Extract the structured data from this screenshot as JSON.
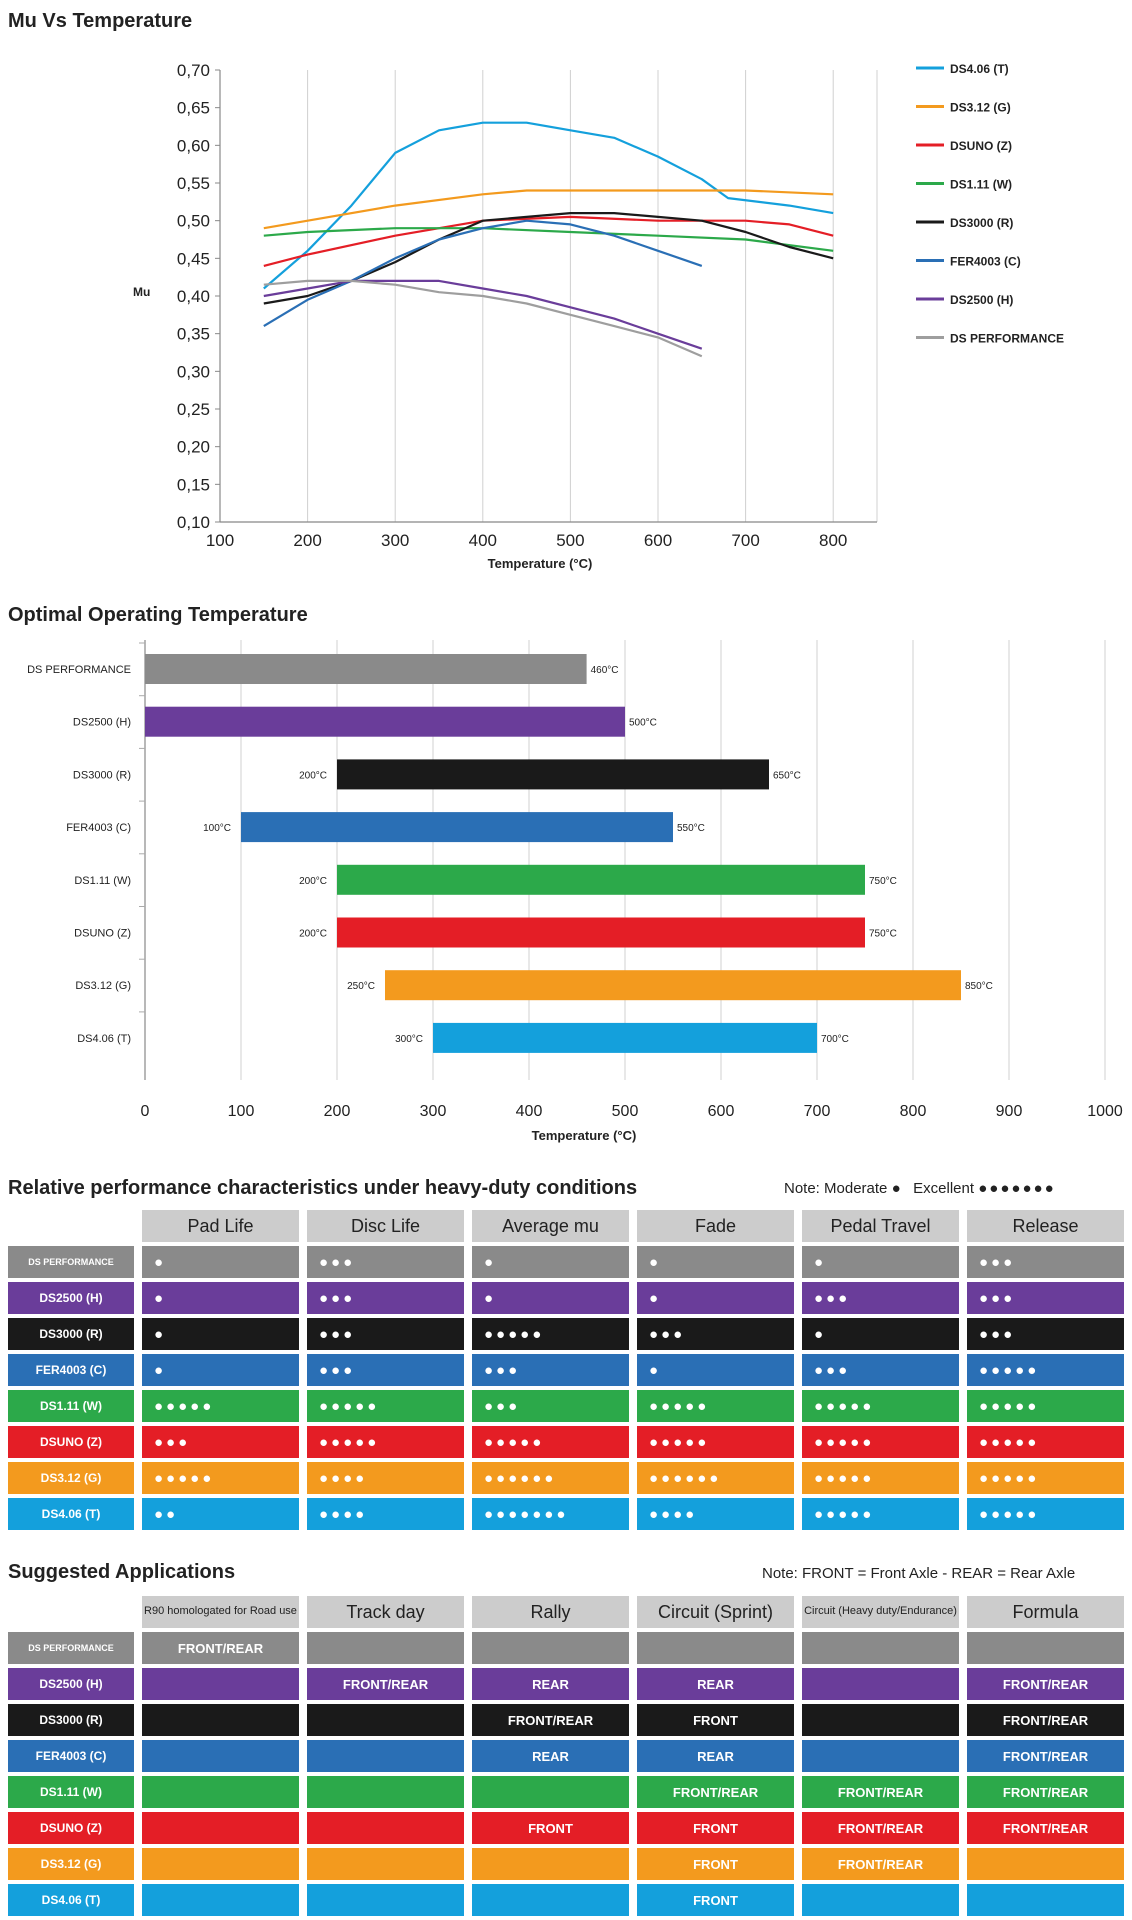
{
  "mu_chart": {
    "title": "Mu Vs Temperature",
    "xlabel": "Temperature (°C)",
    "ylabel": "Mu",
    "yticks": [
      "0,70",
      "0,65",
      "0,60",
      "0,55",
      "0,50",
      "0,45",
      "0,40",
      "0,35",
      "0,30",
      "0,25",
      "0,20",
      "0,15",
      "0,10"
    ],
    "xticks": [
      "100",
      "200",
      "300",
      "400",
      "500",
      "600",
      "700",
      "800"
    ]
  },
  "temp_chart": {
    "title": "Optimal Operating Temperature",
    "xlabel": "Temperature (°C)",
    "xticks": [
      "0",
      "100",
      "200",
      "300",
      "400",
      "500",
      "600",
      "700",
      "800",
      "900",
      "1000"
    ]
  },
  "perf": {
    "title": "Relative performance characteristics under heavy-duty conditions",
    "note_label": "Note:",
    "note_moderate": "Moderate",
    "note_moderate_dots": "●",
    "note_excellent": "Excellent",
    "note_excellent_dots": "●●●●●●●",
    "headers": [
      "Pad Life",
      "Disc Life",
      "Average mu",
      "Fade",
      "Pedal Travel",
      "Release"
    ],
    "rows": [
      {
        "label": "DS PERFORMANCE",
        "color": "#8a8a8a",
        "cells": [
          "●",
          "●●●",
          "●",
          "●",
          "●",
          "●●●"
        ]
      },
      {
        "label": "DS2500 (H)",
        "color": "#6a3d9a",
        "cells": [
          "●",
          "●●●",
          "●",
          "●",
          "●●●",
          "●●●"
        ]
      },
      {
        "label": "DS3000 (R)",
        "color": "#1a1a1a",
        "cells": [
          "●",
          "●●●",
          "●●●●●",
          "●●●",
          "●",
          "●●●"
        ]
      },
      {
        "label": "FER4003 (C)",
        "color": "#2a6fb5",
        "cells": [
          "●",
          "●●●",
          "●●●",
          "●",
          "●●●",
          "●●●●●"
        ]
      },
      {
        "label": "DS1.11 (W)",
        "color": "#2ca94a",
        "cells": [
          "●●●●●",
          "●●●●●",
          "●●●",
          "●●●●●",
          "●●●●●",
          "●●●●●"
        ]
      },
      {
        "label": "DSUNO (Z)",
        "color": "#e41e26",
        "cells": [
          "●●●",
          "●●●●●",
          "●●●●●",
          "●●●●●",
          "●●●●●",
          "●●●●●"
        ]
      },
      {
        "label": "DS3.12 (G)",
        "color": "#f39a1e",
        "cells": [
          "●●●●●",
          "●●●●",
          "●●●●●●",
          "●●●●●●",
          "●●●●●",
          "●●●●●"
        ]
      },
      {
        "label": "DS4.06 (T)",
        "color": "#14a0dc",
        "cells": [
          "●●",
          "●●●●",
          "●●●●●●●",
          "●●●●",
          "●●●●●",
          "●●●●●"
        ]
      }
    ]
  },
  "apps": {
    "title": "Suggested Applications",
    "note": "Note: FRONT = Front Axle - REAR = Rear Axle",
    "headers": [
      "R90 homologated for Road use",
      "Track day",
      "Rally",
      "Circuit (Sprint)",
      "Circuit (Heavy duty/Endurance)",
      "Formula"
    ],
    "rows": [
      {
        "label": "DS PERFORMANCE",
        "color": "#8a8a8a",
        "cells": [
          "FRONT/REAR",
          "",
          "",
          "",
          "",
          ""
        ]
      },
      {
        "label": "DS2500 (H)",
        "color": "#6a3d9a",
        "cells": [
          "",
          "FRONT/REAR",
          "REAR",
          "REAR",
          "",
          "FRONT/REAR"
        ]
      },
      {
        "label": "DS3000 (R)",
        "color": "#1a1a1a",
        "cells": [
          "",
          "",
          "FRONT/REAR",
          "FRONT",
          "",
          "FRONT/REAR"
        ]
      },
      {
        "label": "FER4003 (C)",
        "color": "#2a6fb5",
        "cells": [
          "",
          "",
          "REAR",
          "REAR",
          "",
          "FRONT/REAR"
        ]
      },
      {
        "label": "DS1.11 (W)",
        "color": "#2ca94a",
        "cells": [
          "",
          "",
          "",
          "FRONT/REAR",
          "FRONT/REAR",
          "FRONT/REAR"
        ]
      },
      {
        "label": "DSUNO (Z)",
        "color": "#e41e26",
        "cells": [
          "",
          "",
          "FRONT",
          "FRONT",
          "FRONT/REAR",
          "FRONT/REAR"
        ]
      },
      {
        "label": "DS3.12 (G)",
        "color": "#f39a1e",
        "cells": [
          "",
          "",
          "",
          "FRONT",
          "FRONT/REAR",
          ""
        ]
      },
      {
        "label": "DS4.06 (T)",
        "color": "#14a0dc",
        "cells": [
          "",
          "",
          "",
          "FRONT",
          "",
          ""
        ]
      }
    ]
  },
  "chart_data": [
    {
      "type": "line",
      "title": "Mu Vs Temperature",
      "xlabel": "Temperature (°C)",
      "ylabel": "Mu",
      "xlim": [
        100,
        850
      ],
      "ylim": [
        0.1,
        0.7
      ],
      "grid": "vertical",
      "legend": "right",
      "series": [
        {
          "name": "DS4.06 (T)",
          "color": "#14a0dc",
          "points": [
            [
              150,
              0.41
            ],
            [
              200,
              0.46
            ],
            [
              250,
              0.52
            ],
            [
              300,
              0.59
            ],
            [
              350,
              0.62
            ],
            [
              400,
              0.63
            ],
            [
              450,
              0.63
            ],
            [
              500,
              0.62
            ],
            [
              550,
              0.61
            ],
            [
              600,
              0.585
            ],
            [
              650,
              0.555
            ],
            [
              680,
              0.53
            ],
            [
              750,
              0.52
            ],
            [
              800,
              0.51
            ]
          ]
        },
        {
          "name": "DS3.12 (G)",
          "color": "#f39a1e",
          "points": [
            [
              150,
              0.49
            ],
            [
              200,
              0.5
            ],
            [
              300,
              0.52
            ],
            [
              400,
              0.535
            ],
            [
              450,
              0.54
            ],
            [
              500,
              0.54
            ],
            [
              600,
              0.54
            ],
            [
              700,
              0.54
            ],
            [
              800,
              0.535
            ]
          ]
        },
        {
          "name": "DSUNO (Z)",
          "color": "#e41e26",
          "points": [
            [
              150,
              0.44
            ],
            [
              200,
              0.455
            ],
            [
              300,
              0.48
            ],
            [
              400,
              0.5
            ],
            [
              500,
              0.505
            ],
            [
              600,
              0.5
            ],
            [
              700,
              0.5
            ],
            [
              750,
              0.495
            ],
            [
              800,
              0.48
            ]
          ]
        },
        {
          "name": "DS1.11 (W)",
          "color": "#2ca94a",
          "points": [
            [
              150,
              0.48
            ],
            [
              200,
              0.485
            ],
            [
              300,
              0.49
            ],
            [
              400,
              0.49
            ],
            [
              500,
              0.485
            ],
            [
              600,
              0.48
            ],
            [
              700,
              0.475
            ],
            [
              800,
              0.46
            ]
          ]
        },
        {
          "name": "DS3000 (R)",
          "color": "#1a1a1a",
          "points": [
            [
              150,
              0.39
            ],
            [
              200,
              0.4
            ],
            [
              250,
              0.42
            ],
            [
              300,
              0.445
            ],
            [
              350,
              0.475
            ],
            [
              400,
              0.5
            ],
            [
              450,
              0.505
            ],
            [
              500,
              0.51
            ],
            [
              550,
              0.51
            ],
            [
              600,
              0.505
            ],
            [
              650,
              0.5
            ],
            [
              700,
              0.485
            ],
            [
              750,
              0.465
            ],
            [
              800,
              0.45
            ]
          ]
        },
        {
          "name": "FER4003 (C)",
          "color": "#2a6fb5",
          "points": [
            [
              150,
              0.36
            ],
            [
              200,
              0.395
            ],
            [
              250,
              0.42
            ],
            [
              300,
              0.45
            ],
            [
              350,
              0.475
            ],
            [
              400,
              0.49
            ],
            [
              450,
              0.5
            ],
            [
              500,
              0.495
            ],
            [
              550,
              0.48
            ],
            [
              600,
              0.46
            ],
            [
              650,
              0.44
            ]
          ]
        },
        {
          "name": "DS2500 (H)",
          "color": "#6a3d9a",
          "points": [
            [
              150,
              0.4
            ],
            [
              200,
              0.41
            ],
            [
              250,
              0.42
            ],
            [
              300,
              0.42
            ],
            [
              350,
              0.42
            ],
            [
              400,
              0.41
            ],
            [
              450,
              0.4
            ],
            [
              500,
              0.385
            ],
            [
              550,
              0.37
            ],
            [
              600,
              0.35
            ],
            [
              650,
              0.33
            ]
          ]
        },
        {
          "name": "DS PERFORMANCE",
          "color": "#9e9e9e",
          "points": [
            [
              150,
              0.415
            ],
            [
              200,
              0.42
            ],
            [
              250,
              0.42
            ],
            [
              300,
              0.415
            ],
            [
              350,
              0.405
            ],
            [
              400,
              0.4
            ],
            [
              450,
              0.39
            ],
            [
              500,
              0.375
            ],
            [
              550,
              0.36
            ],
            [
              600,
              0.345
            ],
            [
              650,
              0.32
            ]
          ]
        }
      ]
    },
    {
      "type": "bar",
      "orientation": "horizontal",
      "title": "Optimal Operating Temperature",
      "xlabel": "Temperature (°C)",
      "xlim": [
        0,
        1000
      ],
      "grid": "vertical",
      "categories": [
        "DS PERFORMANCE",
        "DS2500 (H)",
        "DS3000 (R)",
        "FER4003 (C)",
        "DS1.11 (W)",
        "DSUNO (Z)",
        "DS3.12 (G)",
        "DS4.06 (T)"
      ],
      "ranges": [
        {
          "start": 0,
          "end": 460,
          "start_label": "",
          "end_label": "460°C",
          "color": "#8a8a8a"
        },
        {
          "start": 0,
          "end": 500,
          "start_label": "",
          "end_label": "500°C",
          "color": "#6a3d9a"
        },
        {
          "start": 200,
          "end": 650,
          "start_label": "200°C",
          "end_label": "650°C",
          "color": "#1a1a1a"
        },
        {
          "start": 100,
          "end": 550,
          "start_label": "100°C",
          "end_label": "550°C",
          "color": "#2a6fb5"
        },
        {
          "start": 200,
          "end": 750,
          "start_label": "200°C",
          "end_label": "750°C",
          "color": "#2ca94a"
        },
        {
          "start": 200,
          "end": 750,
          "start_label": "200°C",
          "end_label": "750°C",
          "color": "#e41e26"
        },
        {
          "start": 250,
          "end": 850,
          "start_label": "250°C",
          "end_label": "850°C",
          "color": "#f39a1e"
        },
        {
          "start": 300,
          "end": 700,
          "start_label": "300°C",
          "end_label": "700°C",
          "color": "#14a0dc"
        }
      ]
    }
  ]
}
